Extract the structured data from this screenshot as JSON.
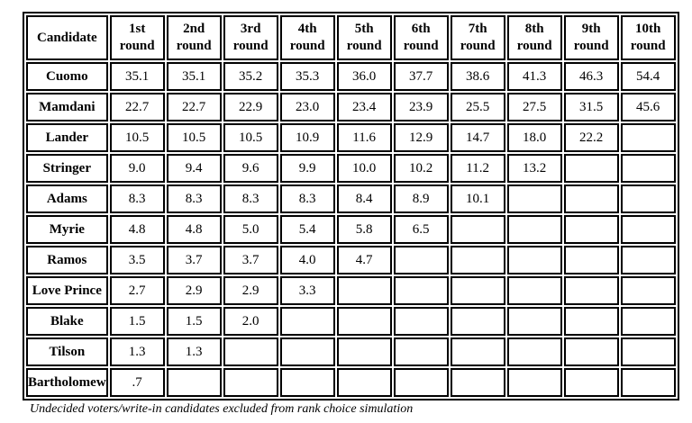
{
  "table": {
    "header": {
      "candidate": "Candidate",
      "round_word": "round",
      "rounds": [
        "1st",
        "2nd",
        "3rd",
        "4th",
        "5th",
        "6th",
        "7th",
        "8th",
        "9th",
        "10th"
      ]
    },
    "rows": [
      {
        "candidate": "Cuomo",
        "values": [
          "35.1",
          "35.1",
          "35.2",
          "35.3",
          "36.0",
          "37.7",
          "38.6",
          "41.3",
          "46.3",
          "54.4"
        ]
      },
      {
        "candidate": "Mamdani",
        "values": [
          "22.7",
          "22.7",
          "22.9",
          "23.0",
          "23.4",
          "23.9",
          "25.5",
          "27.5",
          "31.5",
          "45.6"
        ]
      },
      {
        "candidate": "Lander",
        "values": [
          "10.5",
          "10.5",
          "10.5",
          "10.9",
          "11.6",
          "12.9",
          "14.7",
          "18.0",
          "22.2",
          ""
        ]
      },
      {
        "candidate": "Stringer",
        "values": [
          "9.0",
          "9.4",
          "9.6",
          "9.9",
          "10.0",
          "10.2",
          "11.2",
          "13.2",
          "",
          ""
        ]
      },
      {
        "candidate": "Adams",
        "values": [
          "8.3",
          "8.3",
          "8.3",
          "8.3",
          "8.4",
          "8.9",
          "10.1",
          "",
          "",
          ""
        ]
      },
      {
        "candidate": "Myrie",
        "values": [
          "4.8",
          "4.8",
          "5.0",
          "5.4",
          "5.8",
          "6.5",
          "",
          "",
          "",
          ""
        ]
      },
      {
        "candidate": "Ramos",
        "values": [
          "3.5",
          "3.7",
          "3.7",
          "4.0",
          "4.7",
          "",
          "",
          "",
          "",
          ""
        ]
      },
      {
        "candidate": "Love Prince",
        "values": [
          "2.7",
          "2.9",
          "2.9",
          "3.3",
          "",
          "",
          "",
          "",
          "",
          ""
        ]
      },
      {
        "candidate": "Blake",
        "values": [
          "1.5",
          "1.5",
          "2.0",
          "",
          "",
          "",
          "",
          "",
          "",
          ""
        ]
      },
      {
        "candidate": "Tilson",
        "values": [
          "1.3",
          "1.3",
          "",
          "",
          "",
          "",
          "",
          "",
          "",
          ""
        ]
      },
      {
        "candidate": "Bartholomew",
        "values": [
          ".7",
          "",
          "",
          "",
          "",
          "",
          "",
          "",
          "",
          ""
        ]
      }
    ]
  },
  "footnote": "Undecided voters/write-in candidates excluded from rank choice simulation",
  "colors": {
    "border": "#000000",
    "text": "#000000",
    "background": "#ffffff"
  }
}
